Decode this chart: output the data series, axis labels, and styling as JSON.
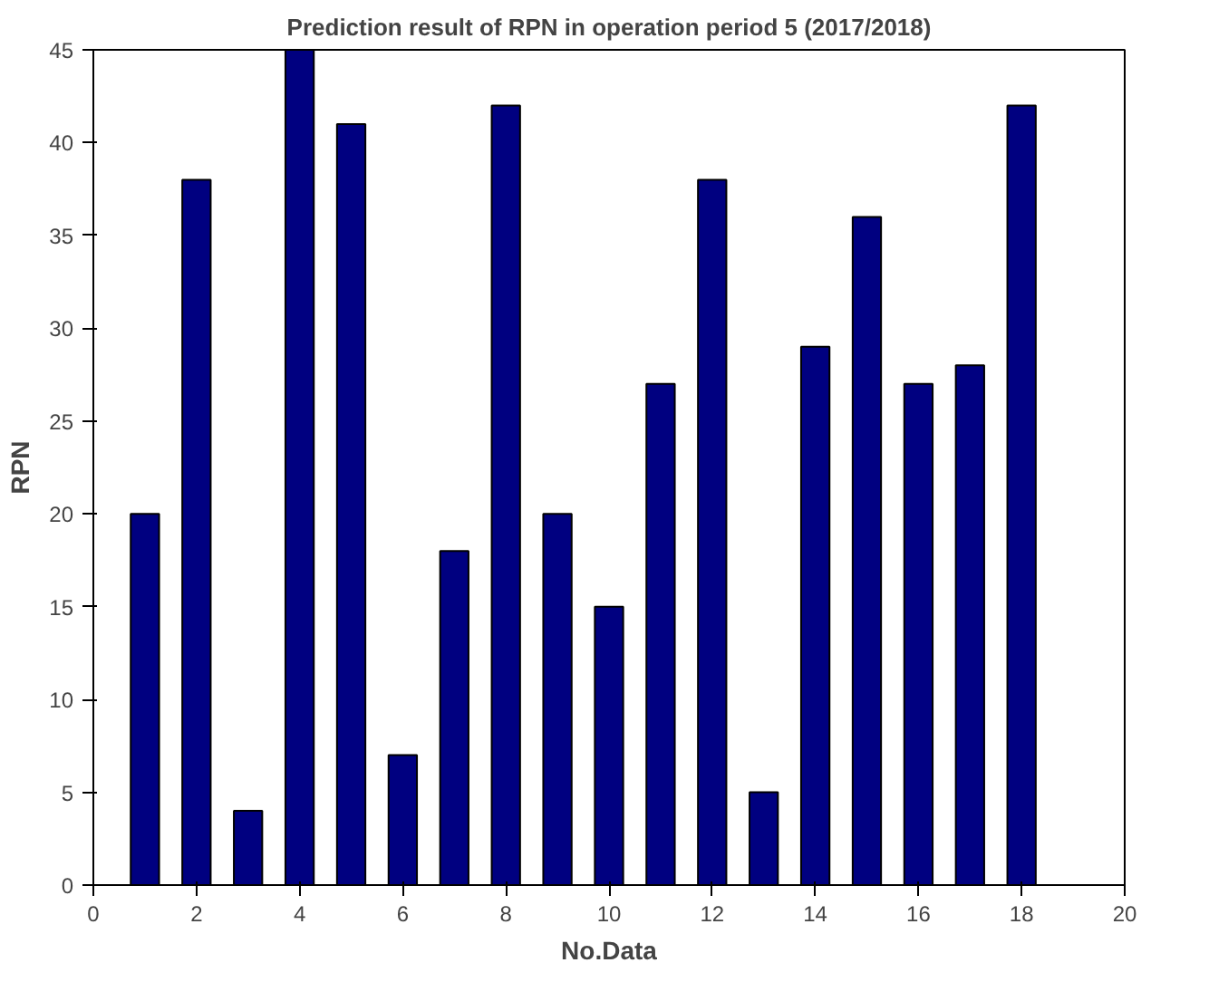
{
  "chart_data": {
    "type": "bar",
    "title": "Prediction result of RPN in operation period 5 (2017/2018)",
    "xlabel": "No.Data",
    "ylabel": "RPN",
    "x": [
      1,
      2,
      3,
      4,
      5,
      6,
      7,
      8,
      9,
      10,
      11,
      12,
      13,
      14,
      15,
      16,
      17,
      18
    ],
    "values": [
      20,
      38,
      4,
      45,
      41,
      7,
      18,
      42,
      20,
      15,
      27,
      38,
      5,
      29,
      36,
      27,
      28,
      42
    ],
    "color": "#000080",
    "xlim": [
      0,
      20
    ],
    "xticks": [
      0,
      2,
      4,
      6,
      8,
      10,
      12,
      14,
      16,
      18,
      20
    ],
    "ylim": [
      0,
      45
    ],
    "yticks": [
      0,
      5,
      10,
      15,
      20,
      25,
      30,
      35,
      40,
      45
    ],
    "grid": false
  }
}
